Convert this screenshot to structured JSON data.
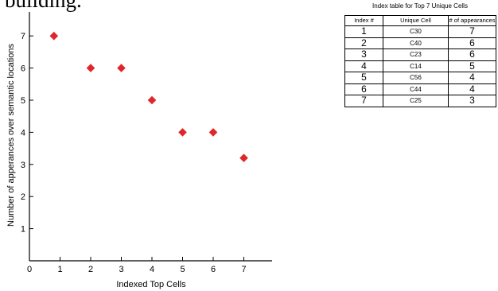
{
  "caption_fragment": "building.",
  "chart_data": {
    "type": "scatter",
    "title": "",
    "xlabel": "Indexed Top Cells",
    "ylabel": "Number of apperances over semantic locations",
    "xlim": [
      0,
      8
    ],
    "ylim": [
      0,
      8
    ],
    "x_ticks": [
      0,
      1,
      2,
      3,
      4,
      5,
      6,
      7
    ],
    "y_ticks": [
      1,
      2,
      3,
      4,
      5,
      6,
      7
    ],
    "grid": false,
    "marker": "diamond",
    "marker_color": "#e0262a",
    "points": [
      {
        "x": 0.8,
        "y": 7
      },
      {
        "x": 2,
        "y": 6
      },
      {
        "x": 3,
        "y": 6
      },
      {
        "x": 4,
        "y": 5
      },
      {
        "x": 5,
        "y": 4
      },
      {
        "x": 6,
        "y": 4
      },
      {
        "x": 7,
        "y": 3.2
      }
    ]
  },
  "index_table": {
    "title": "Index table for Top 7 Unique Cells",
    "headers": [
      "Index #",
      "Unique Cell",
      "# of appearances"
    ],
    "rows": [
      [
        "1",
        "C30",
        "7"
      ],
      [
        "2",
        "C40",
        "6"
      ],
      [
        "3",
        "C23",
        "6"
      ],
      [
        "4",
        "C14",
        "5"
      ],
      [
        "5",
        "C56",
        "4"
      ],
      [
        "6",
        "C44",
        "4"
      ],
      [
        "7",
        "C25",
        "3"
      ]
    ]
  }
}
